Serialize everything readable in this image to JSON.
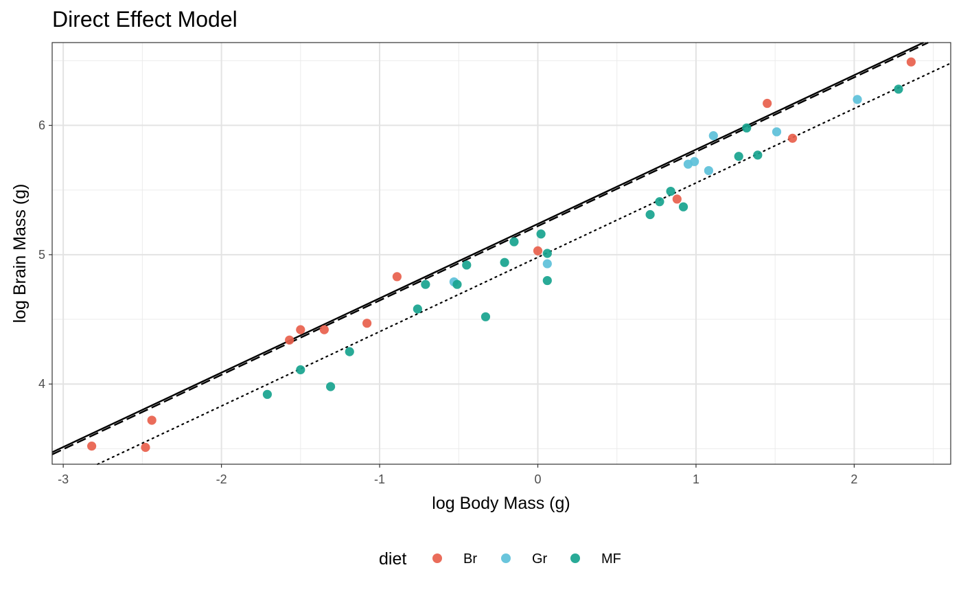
{
  "chart_data": {
    "type": "scatter",
    "title": "Direct Effect Model",
    "xlabel": "log Body Mass (g)",
    "ylabel": "log Brain Mass (g)",
    "xlim": [
      -3.07,
      2.61
    ],
    "ylim": [
      3.38,
      6.64
    ],
    "x_ticks": [
      -3,
      -2,
      -1,
      0,
      1,
      2
    ],
    "y_ticks": [
      4,
      5,
      6
    ],
    "x_tick_labels": [
      "-3",
      "-2",
      "-1",
      "0",
      "1",
      "2"
    ],
    "y_tick_labels": [
      "4",
      "5",
      "6"
    ],
    "grid": true,
    "legend": {
      "title": "diet",
      "placement": "bottom",
      "entries": [
        {
          "label": "Br",
          "color": "#E8604C"
        },
        {
          "label": "Gr",
          "color": "#5CC0D9"
        },
        {
          "label": "MF",
          "color": "#17A38E"
        }
      ]
    },
    "series": [
      {
        "name": "Br",
        "color": "#E8604C",
        "points": [
          {
            "x": -2.82,
            "y": 3.52
          },
          {
            "x": -2.48,
            "y": 3.51
          },
          {
            "x": -2.44,
            "y": 3.72
          },
          {
            "x": -1.57,
            "y": 4.34
          },
          {
            "x": -1.5,
            "y": 4.42
          },
          {
            "x": -1.35,
            "y": 4.42
          },
          {
            "x": -1.08,
            "y": 4.47
          },
          {
            "x": -0.89,
            "y": 4.83
          },
          {
            "x": 0.0,
            "y": 5.03
          },
          {
            "x": 0.88,
            "y": 5.43
          },
          {
            "x": 1.45,
            "y": 6.17
          },
          {
            "x": 1.61,
            "y": 5.9
          },
          {
            "x": 2.36,
            "y": 6.49
          }
        ]
      },
      {
        "name": "Gr",
        "color": "#5CC0D9",
        "points": [
          {
            "x": -0.53,
            "y": 4.79
          },
          {
            "x": 0.06,
            "y": 4.93
          },
          {
            "x": 0.95,
            "y": 5.7
          },
          {
            "x": 0.99,
            "y": 5.72
          },
          {
            "x": 1.08,
            "y": 5.65
          },
          {
            "x": 1.11,
            "y": 5.92
          },
          {
            "x": 1.51,
            "y": 5.95
          },
          {
            "x": 2.02,
            "y": 6.2
          }
        ]
      },
      {
        "name": "MF",
        "color": "#17A38E",
        "points": [
          {
            "x": -1.71,
            "y": 3.92
          },
          {
            "x": -1.5,
            "y": 4.11
          },
          {
            "x": -1.31,
            "y": 3.98
          },
          {
            "x": -1.19,
            "y": 4.25
          },
          {
            "x": -0.76,
            "y": 4.58
          },
          {
            "x": -0.71,
            "y": 4.77
          },
          {
            "x": -0.51,
            "y": 4.77
          },
          {
            "x": -0.45,
            "y": 4.92
          },
          {
            "x": -0.33,
            "y": 4.52
          },
          {
            "x": -0.21,
            "y": 4.94
          },
          {
            "x": -0.15,
            "y": 5.1
          },
          {
            "x": 0.02,
            "y": 5.16
          },
          {
            "x": 0.06,
            "y": 5.01
          },
          {
            "x": 0.06,
            "y": 4.8
          },
          {
            "x": 0.71,
            "y": 5.31
          },
          {
            "x": 0.77,
            "y": 5.41
          },
          {
            "x": 0.84,
            "y": 5.49
          },
          {
            "x": 0.92,
            "y": 5.37
          },
          {
            "x": 1.27,
            "y": 5.76
          },
          {
            "x": 1.32,
            "y": 5.98
          },
          {
            "x": 1.39,
            "y": 5.77
          },
          {
            "x": 2.28,
            "y": 6.28
          }
        ]
      }
    ],
    "lines": [
      {
        "style": "solid",
        "color": "#000000",
        "intercept": 5.238,
        "slope": 0.575
      },
      {
        "style": "dashed",
        "color": "#000000",
        "intercept": 5.221,
        "slope": 0.575
      },
      {
        "style": "dotted",
        "color": "#000000",
        "intercept": 4.98,
        "slope": 0.575
      }
    ]
  }
}
